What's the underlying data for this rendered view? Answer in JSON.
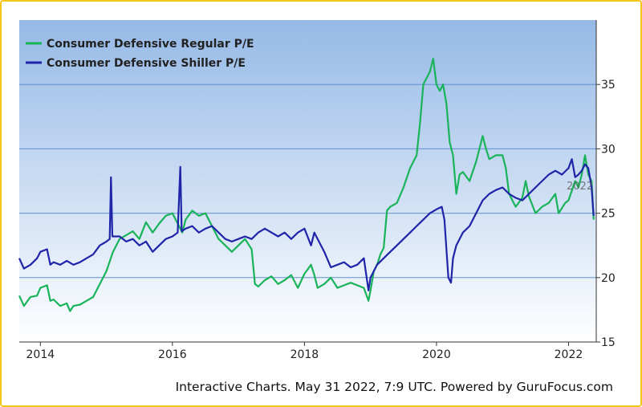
{
  "chart_data": {
    "type": "line",
    "title": "",
    "xlabel": "",
    "ylabel": "",
    "xlim": [
      2013.68,
      2022.42
    ],
    "ylim": [
      15,
      40
    ],
    "x_ticks": [
      2014,
      2016,
      2018,
      2020,
      2022
    ],
    "x_tick_labels": [
      "2014",
      "2016",
      "2018",
      "2020",
      "2022"
    ],
    "y_ticks": [
      15,
      20,
      25,
      30,
      35
    ],
    "y_tick_labels": [
      "15",
      "20",
      "25",
      "30",
      "35"
    ],
    "grid": true,
    "legend_position": "top-left",
    "series": [
      {
        "name": "Consumer Defensive Regular P/E",
        "color": "#19b35a",
        "points": [
          [
            2013.68,
            18.6
          ],
          [
            2013.75,
            17.8
          ],
          [
            2013.85,
            18.5
          ],
          [
            2013.95,
            18.6
          ],
          [
            2014.0,
            19.2
          ],
          [
            2014.1,
            19.4
          ],
          [
            2014.15,
            18.2
          ],
          [
            2014.2,
            18.3
          ],
          [
            2014.3,
            17.8
          ],
          [
            2014.4,
            18.0
          ],
          [
            2014.45,
            17.4
          ],
          [
            2014.5,
            17.8
          ],
          [
            2014.6,
            17.9
          ],
          [
            2014.7,
            18.2
          ],
          [
            2014.8,
            18.5
          ],
          [
            2014.9,
            19.5
          ],
          [
            2015.0,
            20.5
          ],
          [
            2015.1,
            22.0
          ],
          [
            2015.2,
            23.0
          ],
          [
            2015.3,
            23.3
          ],
          [
            2015.4,
            23.6
          ],
          [
            2015.5,
            23.0
          ],
          [
            2015.6,
            24.3
          ],
          [
            2015.7,
            23.5
          ],
          [
            2015.8,
            24.2
          ],
          [
            2015.9,
            24.8
          ],
          [
            2016.0,
            25.0
          ],
          [
            2016.1,
            24.0
          ],
          [
            2016.15,
            23.5
          ],
          [
            2016.2,
            24.5
          ],
          [
            2016.3,
            25.2
          ],
          [
            2016.4,
            24.8
          ],
          [
            2016.5,
            25.0
          ],
          [
            2016.6,
            24.0
          ],
          [
            2016.7,
            23.0
          ],
          [
            2016.8,
            22.5
          ],
          [
            2016.9,
            22.0
          ],
          [
            2017.0,
            22.5
          ],
          [
            2017.1,
            23.0
          ],
          [
            2017.2,
            22.2
          ],
          [
            2017.25,
            19.5
          ],
          [
            2017.3,
            19.3
          ],
          [
            2017.4,
            19.8
          ],
          [
            2017.5,
            20.1
          ],
          [
            2017.6,
            19.5
          ],
          [
            2017.7,
            19.8
          ],
          [
            2017.8,
            20.2
          ],
          [
            2017.9,
            19.2
          ],
          [
            2018.0,
            20.3
          ],
          [
            2018.1,
            21.0
          ],
          [
            2018.15,
            20.2
          ],
          [
            2018.2,
            19.2
          ],
          [
            2018.3,
            19.5
          ],
          [
            2018.4,
            20.0
          ],
          [
            2018.5,
            19.2
          ],
          [
            2018.6,
            19.4
          ],
          [
            2018.7,
            19.6
          ],
          [
            2018.8,
            19.4
          ],
          [
            2018.9,
            19.2
          ],
          [
            2018.97,
            18.2
          ],
          [
            2019.0,
            19.0
          ],
          [
            2019.05,
            20.5
          ],
          [
            2019.1,
            21.0
          ],
          [
            2019.15,
            21.8
          ],
          [
            2019.2,
            22.3
          ],
          [
            2019.25,
            25.2
          ],
          [
            2019.3,
            25.5
          ],
          [
            2019.4,
            25.8
          ],
          [
            2019.5,
            27.0
          ],
          [
            2019.6,
            28.5
          ],
          [
            2019.7,
            29.5
          ],
          [
            2019.75,
            32.0
          ],
          [
            2019.8,
            35.0
          ],
          [
            2019.85,
            35.5
          ],
          [
            2019.9,
            36.0
          ],
          [
            2019.95,
            37.0
          ],
          [
            2020.0,
            35.0
          ],
          [
            2020.05,
            34.5
          ],
          [
            2020.1,
            35.0
          ],
          [
            2020.15,
            33.5
          ],
          [
            2020.2,
            30.5
          ],
          [
            2020.25,
            29.5
          ],
          [
            2020.3,
            26.5
          ],
          [
            2020.35,
            28.0
          ],
          [
            2020.4,
            28.2
          ],
          [
            2020.5,
            27.5
          ],
          [
            2020.6,
            29.0
          ],
          [
            2020.7,
            31.0
          ],
          [
            2020.75,
            30.0
          ],
          [
            2020.8,
            29.2
          ],
          [
            2020.9,
            29.5
          ],
          [
            2021.0,
            29.5
          ],
          [
            2021.05,
            28.5
          ],
          [
            2021.1,
            26.5
          ],
          [
            2021.2,
            25.5
          ],
          [
            2021.3,
            26.2
          ],
          [
            2021.35,
            27.5
          ],
          [
            2021.4,
            26.3
          ],
          [
            2021.5,
            25.0
          ],
          [
            2021.6,
            25.5
          ],
          [
            2021.7,
            25.8
          ],
          [
            2021.8,
            26.5
          ],
          [
            2021.85,
            25.0
          ],
          [
            2021.95,
            25.8
          ],
          [
            2022.0,
            26.0
          ],
          [
            2022.1,
            27.5
          ],
          [
            2022.15,
            27.0
          ],
          [
            2022.2,
            28.0
          ],
          [
            2022.25,
            29.5
          ],
          [
            2022.3,
            28.0
          ],
          [
            2022.35,
            27.5
          ],
          [
            2022.38,
            24.5
          ]
        ]
      },
      {
        "name": "Consumer Defensive Shiller P/E",
        "color": "#1f24a8",
        "points": [
          [
            2013.68,
            21.5
          ],
          [
            2013.75,
            20.7
          ],
          [
            2013.85,
            21.0
          ],
          [
            2013.95,
            21.5
          ],
          [
            2014.0,
            22.0
          ],
          [
            2014.1,
            22.2
          ],
          [
            2014.15,
            21.0
          ],
          [
            2014.2,
            21.2
          ],
          [
            2014.3,
            21.0
          ],
          [
            2014.4,
            21.3
          ],
          [
            2014.5,
            21.0
          ],
          [
            2014.6,
            21.2
          ],
          [
            2014.7,
            21.5
          ],
          [
            2014.8,
            21.8
          ],
          [
            2014.9,
            22.5
          ],
          [
            2015.0,
            22.8
          ],
          [
            2015.05,
            23.0
          ],
          [
            2015.07,
            27.8
          ],
          [
            2015.09,
            23.2
          ],
          [
            2015.2,
            23.2
          ],
          [
            2015.3,
            22.8
          ],
          [
            2015.4,
            23.0
          ],
          [
            2015.5,
            22.5
          ],
          [
            2015.6,
            22.8
          ],
          [
            2015.7,
            22.0
          ],
          [
            2015.8,
            22.5
          ],
          [
            2015.9,
            23.0
          ],
          [
            2016.0,
            23.2
          ],
          [
            2016.08,
            23.5
          ],
          [
            2016.12,
            28.6
          ],
          [
            2016.14,
            23.6
          ],
          [
            2016.2,
            23.8
          ],
          [
            2016.3,
            24.0
          ],
          [
            2016.4,
            23.5
          ],
          [
            2016.5,
            23.8
          ],
          [
            2016.6,
            24.0
          ],
          [
            2016.7,
            23.5
          ],
          [
            2016.8,
            23.0
          ],
          [
            2016.9,
            22.8
          ],
          [
            2017.0,
            23.0
          ],
          [
            2017.1,
            23.2
          ],
          [
            2017.2,
            23.0
          ],
          [
            2017.3,
            23.5
          ],
          [
            2017.4,
            23.8
          ],
          [
            2017.5,
            23.5
          ],
          [
            2017.6,
            23.2
          ],
          [
            2017.7,
            23.5
          ],
          [
            2017.8,
            23.0
          ],
          [
            2017.9,
            23.5
          ],
          [
            2018.0,
            23.8
          ],
          [
            2018.1,
            22.5
          ],
          [
            2018.15,
            23.5
          ],
          [
            2018.2,
            23.0
          ],
          [
            2018.3,
            22.0
          ],
          [
            2018.4,
            20.8
          ],
          [
            2018.5,
            21.0
          ],
          [
            2018.6,
            21.2
          ],
          [
            2018.7,
            20.8
          ],
          [
            2018.8,
            21.0
          ],
          [
            2018.9,
            21.5
          ],
          [
            2018.97,
            19.0
          ],
          [
            2019.0,
            20.0
          ],
          [
            2019.1,
            21.0
          ],
          [
            2019.2,
            21.5
          ],
          [
            2019.3,
            22.0
          ],
          [
            2019.4,
            22.5
          ],
          [
            2019.5,
            23.0
          ],
          [
            2019.6,
            23.5
          ],
          [
            2019.7,
            24.0
          ],
          [
            2019.8,
            24.5
          ],
          [
            2019.9,
            25.0
          ],
          [
            2020.0,
            25.3
          ],
          [
            2020.08,
            25.5
          ],
          [
            2020.12,
            24.5
          ],
          [
            2020.18,
            20.0
          ],
          [
            2020.22,
            19.6
          ],
          [
            2020.25,
            21.5
          ],
          [
            2020.3,
            22.5
          ],
          [
            2020.4,
            23.5
          ],
          [
            2020.5,
            24.0
          ],
          [
            2020.6,
            25.0
          ],
          [
            2020.7,
            26.0
          ],
          [
            2020.8,
            26.5
          ],
          [
            2020.9,
            26.8
          ],
          [
            2021.0,
            27.0
          ],
          [
            2021.1,
            26.5
          ],
          [
            2021.2,
            26.2
          ],
          [
            2021.3,
            26.0
          ],
          [
            2021.4,
            26.5
          ],
          [
            2021.5,
            27.0
          ],
          [
            2021.6,
            27.5
          ],
          [
            2021.7,
            28.0
          ],
          [
            2021.8,
            28.3
          ],
          [
            2021.9,
            28.0
          ],
          [
            2022.0,
            28.5
          ],
          [
            2022.05,
            29.2
          ],
          [
            2022.1,
            27.8
          ],
          [
            2022.15,
            28.0
          ],
          [
            2022.2,
            28.3
          ],
          [
            2022.25,
            28.8
          ],
          [
            2022.3,
            28.5
          ],
          [
            2022.35,
            27.0
          ],
          [
            2022.38,
            24.8
          ]
        ]
      }
    ],
    "annotations": [
      "2022"
    ]
  },
  "credit": "Interactive Charts. May 31 2022, 7:9 UTC. Powered by GuruFocus.com"
}
